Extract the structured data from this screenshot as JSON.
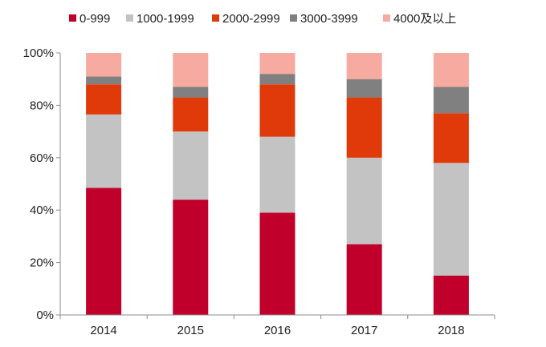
{
  "chart_data": {
    "type": "bar",
    "stacked": true,
    "categories": [
      "2014",
      "2015",
      "2016",
      "2017",
      "2018"
    ],
    "series": [
      {
        "name": "0-999",
        "color": "#c0002a",
        "values": [
          48.5,
          44,
          39,
          27,
          15
        ]
      },
      {
        "name": "1000-1999",
        "color": "#c3c3c3",
        "values": [
          28,
          26,
          29,
          33,
          43
        ]
      },
      {
        "name": "2000-2999",
        "color": "#e03a0a",
        "values": [
          11.5,
          13,
          20,
          23,
          19
        ]
      },
      {
        "name": "3000-3999",
        "color": "#808080",
        "values": [
          3,
          4,
          4,
          7,
          10
        ]
      },
      {
        "name": "4000及以上",
        "color": "#f7aaa0",
        "values": [
          9,
          13,
          8,
          10,
          13
        ]
      }
    ],
    "ylim": [
      0,
      100
    ],
    "yticks": [
      "0%",
      "20%",
      "40%",
      "60%",
      "80%",
      "100%"
    ],
    "grid": false,
    "legend": "top"
  }
}
